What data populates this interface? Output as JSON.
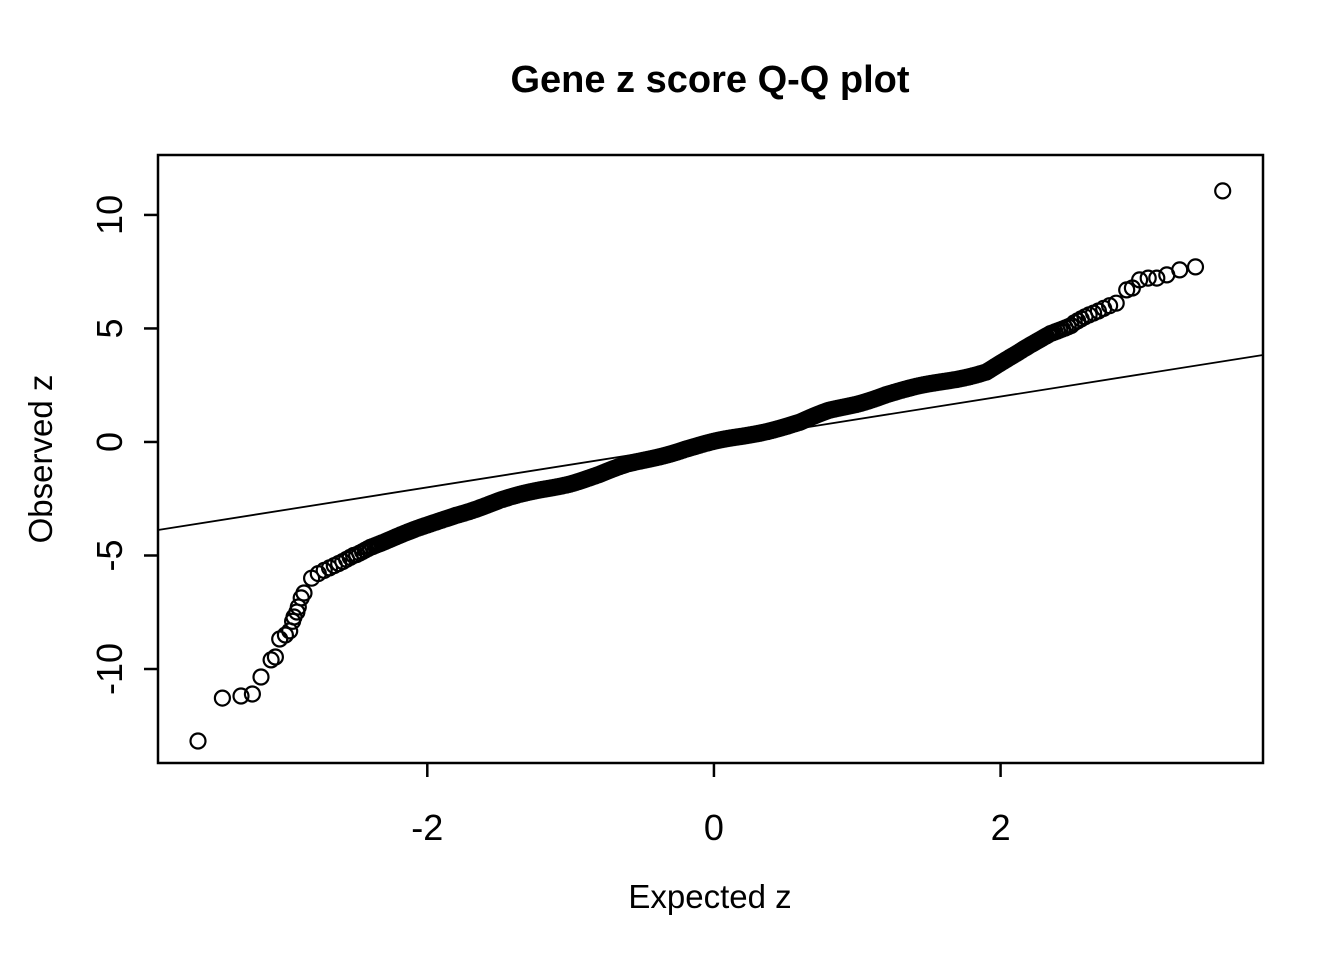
{
  "chart_data": {
    "type": "scatter",
    "title": "Gene z score Q-Q plot",
    "xlabel": "Expected z",
    "ylabel": "Observed z",
    "x_ticks": [
      -2,
      0,
      2
    ],
    "y_ticks": [
      -10,
      -5,
      0,
      5,
      10
    ],
    "x_range": [
      -3.879,
      3.831
    ],
    "y_range": [
      -14.14,
      12.64
    ],
    "grid": false,
    "legend": null,
    "background_color": "#ffffff",
    "foreground_color": "#000000",
    "marker": {
      "shape": "open-circle",
      "color": "#000000",
      "radius_px": 7.5,
      "stroke_px": 2.2
    },
    "qq_line": {
      "slope": 1.0,
      "intercept": 0.0,
      "color": "#000000",
      "stroke_px": 1.8
    },
    "n_points": 2600,
    "dense_limit": 2.85,
    "wiggle": {
      "amp": 0.05,
      "freq": 9,
      "phase": 1.3,
      "max_abs_x": 2.5
    },
    "curve_anchors": [
      [
        -2.86,
        -6.65
      ],
      [
        -2.83,
        -6.1
      ],
      [
        -2.75,
        -5.75
      ],
      [
        -2.6,
        -5.3
      ],
      [
        -2.4,
        -4.6
      ],
      [
        -2.2,
        -4.15
      ],
      [
        -2.0,
        -3.7
      ],
      [
        -1.8,
        -3.2
      ],
      [
        -1.5,
        -2.6
      ],
      [
        -1.2,
        -2.1
      ],
      [
        -1.0,
        -1.8
      ],
      [
        -0.8,
        -1.45
      ],
      [
        -0.6,
        -1.0
      ],
      [
        -0.4,
        -0.65
      ],
      [
        -0.2,
        -0.3
      ],
      [
        0.0,
        -0.02
      ],
      [
        0.2,
        0.25
      ],
      [
        0.4,
        0.55
      ],
      [
        0.6,
        0.85
      ],
      [
        0.8,
        1.35
      ],
      [
        1.0,
        1.7
      ],
      [
        1.2,
        2.1
      ],
      [
        1.45,
        2.45
      ],
      [
        1.7,
        2.8
      ],
      [
        1.9,
        3.1
      ],
      [
        2.1,
        3.8
      ],
      [
        2.35,
        4.8
      ],
      [
        2.5,
        5.2
      ],
      [
        2.6,
        5.55
      ],
      [
        2.67,
        5.73
      ],
      [
        2.74,
        5.95
      ],
      [
        2.81,
        6.12
      ],
      [
        2.88,
        6.7
      ]
    ],
    "lower_tail_points": [
      [
        -3.6,
        -13.17
      ],
      [
        -3.43,
        -11.28
      ],
      [
        -3.3,
        -11.19
      ],
      [
        -3.22,
        -11.1
      ],
      [
        -3.16,
        -10.35
      ],
      [
        -3.09,
        -9.6
      ],
      [
        -3.06,
        -9.47
      ],
      [
        -3.03,
        -8.68
      ],
      [
        -2.99,
        -8.5
      ],
      [
        -2.96,
        -8.32
      ],
      [
        -2.94,
        -7.9
      ],
      [
        -2.93,
        -7.71
      ],
      [
        -2.91,
        -7.49
      ],
      [
        -2.9,
        -7.27
      ],
      [
        -2.88,
        -6.87
      ],
      [
        -2.86,
        -6.65
      ]
    ],
    "upper_tail_points": [
      [
        2.88,
        6.7
      ],
      [
        2.92,
        6.78
      ],
      [
        2.97,
        7.14
      ],
      [
        3.03,
        7.22
      ],
      [
        3.09,
        7.22
      ],
      [
        3.16,
        7.36
      ],
      [
        3.25,
        7.58
      ],
      [
        3.36,
        7.71
      ],
      [
        3.55,
        11.06
      ]
    ]
  }
}
